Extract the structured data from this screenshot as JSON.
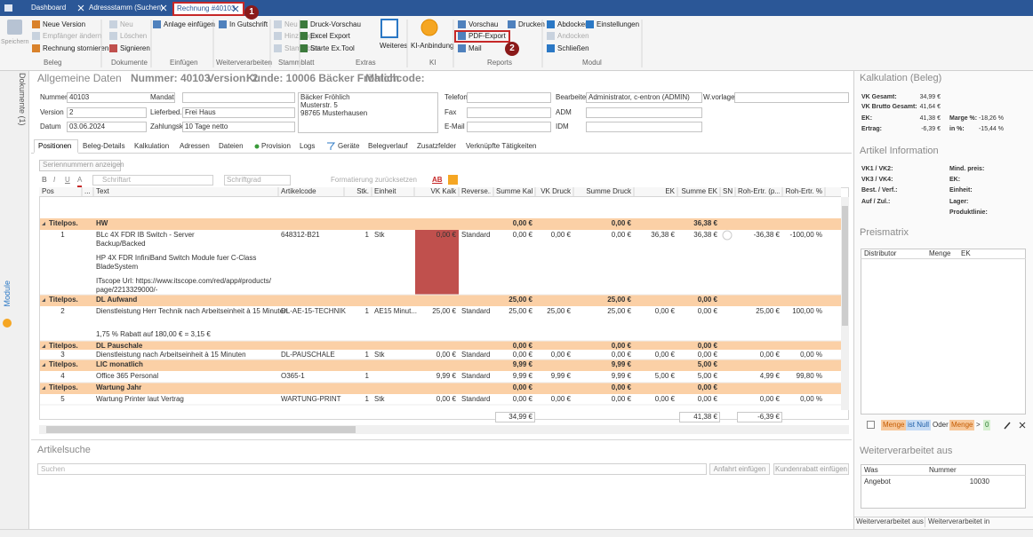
{
  "tabs": [
    "Dashboard",
    "Adressstamm (Suchen)",
    "Rechnung #40103"
  ],
  "callouts": [
    "1",
    "2"
  ],
  "ribbon": {
    "save": "Speichern",
    "groups": [
      {
        "label": "Beleg",
        "items": [
          "Neue Version",
          "Empfänger ändern",
          "Rechnung stornieren"
        ]
      },
      {
        "label": "Dokumente",
        "items": [
          "Neu",
          "Löschen",
          "Signieren"
        ]
      },
      {
        "label": "Einfügen",
        "items": [
          "Anlage einfügen"
        ]
      },
      {
        "label": "Weiterverarbeiten",
        "items": [
          "In Gutschrift"
        ]
      },
      {
        "label": "Stammblatt",
        "items": [
          "Neu",
          "Hinzufügen",
          "Stammblatt"
        ]
      },
      {
        "label": "Extras",
        "items": [
          "Druck-Vorschau",
          "Excel Export",
          "Starte Ex.Tool",
          "Weiteres"
        ]
      },
      {
        "label": "KI",
        "items": [
          "KI-Anbindung"
        ]
      },
      {
        "label": "Reports",
        "items": [
          "Vorschau",
          "Drucken",
          "PDF-Export",
          "Mail"
        ]
      },
      {
        "label": "Modul",
        "items": [
          "Abdocken",
          "Einstellungen",
          "Andocken",
          "Schließen"
        ]
      }
    ]
  },
  "sidebar": {
    "documents": "Dokumente (1)",
    "modules": "Module"
  },
  "header": {
    "title": "Allgemeine Daten",
    "number": "Nummer: 40103",
    "version": "Version: 2",
    "customer": "Kunde: 10006 Bäcker Fröhlich",
    "matchcode": "Matchcode:"
  },
  "form": {
    "fields": [
      {
        "label": "Nummer",
        "value": "40103"
      },
      {
        "label": "Version",
        "value": "2"
      },
      {
        "label": "Datum",
        "value": "03.06.2024"
      },
      {
        "label": "Mandat"
      },
      {
        "label": "Lieferbed.",
        "value": "Frei Haus"
      },
      {
        "label": "Zahlungsk.",
        "value": "10 Tage netto"
      },
      {
        "label": "Telefon"
      },
      {
        "label": "Fax"
      },
      {
        "label": "E-Mail"
      },
      {
        "label": "Bearbeiter",
        "value": "Administrator, c-entron (ADMIN)"
      },
      {
        "label": "W.vorlage"
      }
    ],
    "address": [
      "Bäcker Fröhlich",
      "Musterstr. 5",
      "98765 Musterhausen"
    ],
    "extra": [
      "ADM",
      "IDM"
    ]
  },
  "docTabs": [
    "Positionen",
    "Beleg-Details",
    "Kalkulation",
    "Adressen",
    "Dateien",
    "Provision",
    "Logs",
    "Geräte",
    "Belegverlauf",
    "Zusatzfelder",
    "Verknüpfte Tätigkeiten"
  ],
  "toolbar": {
    "serials": "Seriennummern anzeigen",
    "bold": "B",
    "italic": "I",
    "underline": "U",
    "color": "A",
    "font": "Schriftart",
    "size": "Schriftgrad",
    "reset": "Formatierung zurücksetzen",
    "spell": "AB"
  },
  "grid": {
    "columns": [
      "Pos",
      "...",
      "Text",
      "Artikelcode",
      "Stk.",
      "Einheit",
      "VK Kalk",
      "Reverse...",
      "Summe Kalk",
      "VK Druck",
      "Summe Druck",
      "EK",
      "Summe EK",
      "SN",
      "Roh-Ertr. (p...",
      "Roh-Ertr. %"
    ],
    "rows": [
      {
        "kind": "title",
        "pos": "Titelpos.",
        "text": [
          [
            "HW"
          ]
        ],
        "sumCalc": "0,00 €",
        "sumPrint": "0,00 €",
        "sumEk": "36,38 €"
      },
      {
        "kind": "item",
        "pos": "1",
        "text": [
          [
            "BLc 4X FDR IB Switch - Server",
            "Backup/Backed"
          ],
          [
            "HP 4X FDR InfiniBand Switch Module fuer C-Class",
            "BladeSystem"
          ],
          [
            "ITscope Url: https://www.itscope.com/red/app#products/",
            "page/2213329000/-"
          ]
        ],
        "code": "648312-B21",
        "qty": "1",
        "unit": "Stk",
        "vkCalc": "0,00 €",
        "reverse": "Standard",
        "sumCalc": "0,00 €",
        "vkPrint": "0,00 €",
        "sumPrint": "0,00 €",
        "ek": "36,38 €",
        "sumEk": "36,38 €",
        "profit": "-36,38 €",
        "profitPct": "-100,00 %"
      },
      {
        "kind": "title",
        "pos": "Titelpos.",
        "text": [
          [
            "DL Aufwand"
          ]
        ],
        "sumCalc": "25,00 €",
        "sumPrint": "25,00 €",
        "sumEk": "0,00 €"
      },
      {
        "kind": "item",
        "pos": "2",
        "text": [
          [
            "Dienstleistung Herr Technik nach Arbeitseinheit à 15 Minuten"
          ],
          [
            "1,75 % Rabatt auf 180,00 € = 3,15 €"
          ]
        ],
        "code": "DL-AE-15-TECHNIK",
        "qty": "1",
        "unit": "AE15 Minut...",
        "vkCalc": "25,00 €",
        "reverse": "Standard",
        "sumCalc": "25,00 €",
        "vkPrint": "25,00 €",
        "sumPrint": "25,00 €",
        "ek": "0,00 €",
        "sumEk": "0,00 €",
        "profit": "25,00 €",
        "profitPct": "100,00 %"
      },
      {
        "kind": "title",
        "pos": "Titelpos.",
        "text": [
          [
            "DL Pauschale"
          ]
        ],
        "sumCalc": "0,00 €",
        "sumPrint": "0,00 €",
        "sumEk": "0,00 €"
      },
      {
        "kind": "item",
        "pos": "3",
        "text": [
          [
            "Dienstleistung nach Arbeitseinheit à 15 Minuten"
          ]
        ],
        "code": "DL-PAUSCHALE",
        "qty": "1",
        "unit": "Stk",
        "vkCalc": "0,00 €",
        "reverse": "Standard",
        "sumCalc": "0,00 €",
        "vkPrint": "0,00 €",
        "sumPrint": "0,00 €",
        "ek": "0,00 €",
        "sumEk": "0,00 €",
        "profit": "0,00 €",
        "profitPct": "0,00 %"
      },
      {
        "kind": "title",
        "pos": "Titelpos.",
        "text": [
          [
            "LIC monatlich"
          ]
        ],
        "sumCalc": "9,99 €",
        "sumPrint": "9,99 €",
        "sumEk": "5,00 €"
      },
      {
        "kind": "item",
        "pos": "4",
        "text": [
          [
            "Office 365 Personal"
          ]
        ],
        "code": "O365-1",
        "qty": "1",
        "vkCalc": "9,99 €",
        "reverse": "Standard",
        "sumCalc": "9,99 €",
        "vkPrint": "9,99 €",
        "sumPrint": "9,99 €",
        "ek": "5,00 €",
        "sumEk": "5,00 €",
        "profit": "4,99 €",
        "profitPct": "99,80 %"
      },
      {
        "kind": "title",
        "pos": "Titelpos.",
        "text": [
          [
            "Wartung Jahr"
          ]
        ],
        "sumCalc": "0,00 €",
        "sumPrint": "0,00 €",
        "sumEk": "0,00 €"
      },
      {
        "kind": "item",
        "pos": "5",
        "text": [
          [
            "Wartung Printer laut Vertrag"
          ]
        ],
        "code": "WARTUNG-PRINT",
        "qty": "1",
        "unit": "Stk",
        "vkCalc": "0,00 €",
        "reverse": "Standard",
        "sumCalc": "0,00 €",
        "vkPrint": "0,00 €",
        "sumPrint": "0,00 €",
        "ek": "0,00 €",
        "sumEk": "0,00 €",
        "profit": "0,00 €",
        "profitPct": "0,00 %"
      }
    ],
    "totals": {
      "sumCalc": "34,99 €",
      "sumEk": "41,38 €",
      "profit": "-6,39 €"
    }
  },
  "articleSearch": {
    "title": "Artikelsuche",
    "placeholder": "Suchen",
    "buttons": [
      "Anfahrt einfügen",
      "Kundenrabatt einfügen"
    ]
  },
  "calc": {
    "title": "Kalkulation (Beleg)",
    "items": [
      {
        "label": "VK Gesamt:",
        "value": "34,99 €"
      },
      {
        "label": "VK Brutto Gesamt:",
        "value": "41,64 €"
      },
      {
        "label": "EK:",
        "value": "41,38 €"
      },
      {
        "label": "Marge %:",
        "value": "-18,26 %"
      },
      {
        "label": "Ertrag:",
        "value": "-6,39 €"
      },
      {
        "label": "in %:",
        "value": "-15,44 %"
      }
    ]
  },
  "article": {
    "title": "Artikel Information",
    "labels": [
      "VK1 / VK2:",
      "Mind. preis:",
      "VK3 / VK4:",
      "EK:",
      "Best. / Verf.:",
      "Einheit:",
      "Auf / Zul.:",
      "Lager:",
      "Produktlinie:"
    ]
  },
  "priceMatrix": {
    "title": "Preismatrix",
    "columns": [
      "Distributor",
      "Menge",
      "EK"
    ],
    "filter": [
      "Menge",
      "ist Null",
      "Oder",
      "Menge",
      ">",
      "0"
    ]
  },
  "followUp": {
    "title": "Weiterverarbeitet aus",
    "columns": [
      "Was",
      "Nummer"
    ],
    "rows": [
      [
        "Angebot",
        "10030"
      ]
    ],
    "tabs": [
      "Weiterverarbeitet aus",
      "Weiterverarbeitet in"
    ]
  }
}
